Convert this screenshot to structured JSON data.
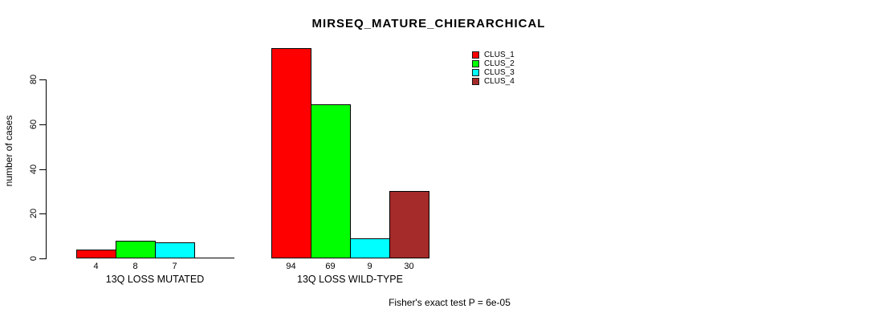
{
  "chart_data": {
    "type": "bar",
    "title": "MIRSEQ_MATURE_CHIERARCHICAL",
    "categories": [
      "13Q LOSS MUTATED",
      "13Q LOSS WILD-TYPE"
    ],
    "series": [
      {
        "name": "CLUS_1",
        "color": "#FF0000",
        "values": [
          4,
          94
        ]
      },
      {
        "name": "CLUS_2",
        "color": "#00FF00",
        "values": [
          8,
          69
        ]
      },
      {
        "name": "CLUS_3",
        "color": "#00FFFF",
        "values": [
          7,
          9
        ]
      },
      {
        "name": "CLUS_4",
        "color": "#A52A2A",
        "values": [
          0,
          30
        ]
      }
    ],
    "ylabel": "number of cases",
    "xlabel": "",
    "yticks": [
      0,
      20,
      40,
      60,
      80
    ],
    "ylim": [
      0,
      94
    ],
    "grid": false,
    "legend_position": "top-right",
    "bar_value_labels": true,
    "zero_value_bars_drawn": false,
    "annotation": "Fisher's exact test P = 6e-05",
    "axis_color": "#000000",
    "background_color": "#FFFFFF"
  }
}
